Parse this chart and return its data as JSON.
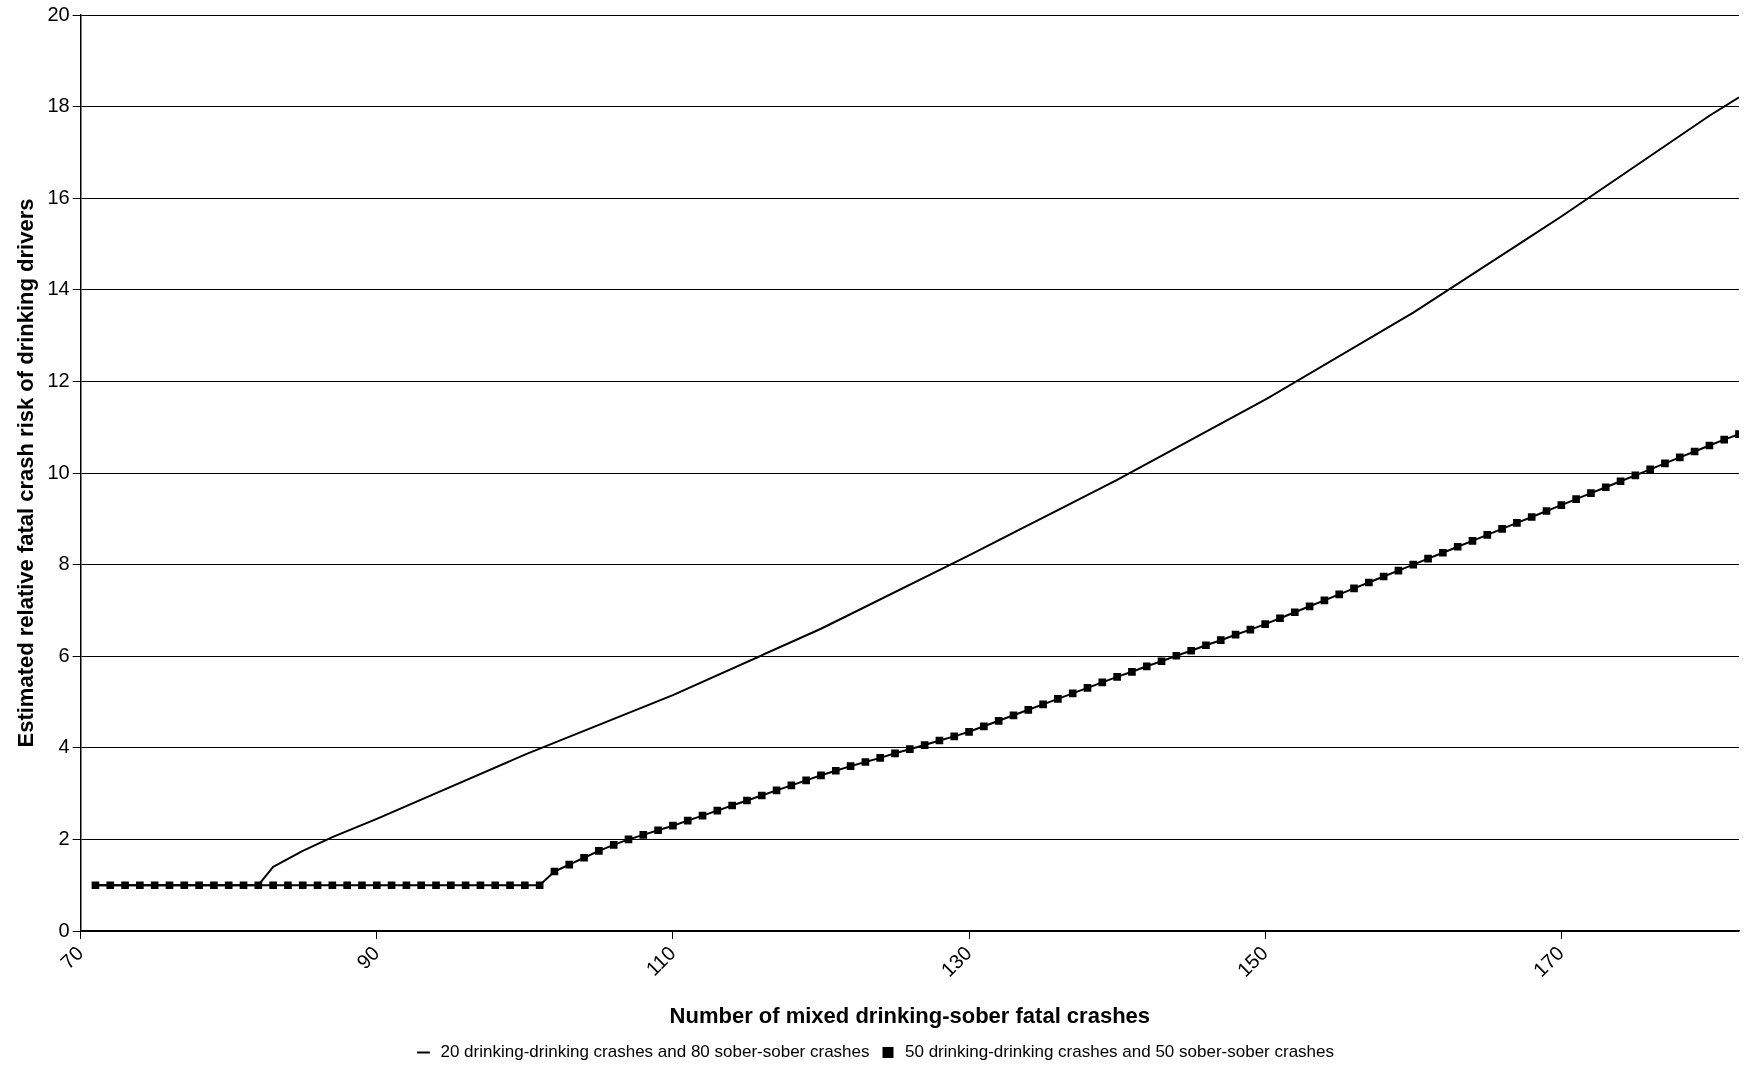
{
  "chart_data": {
    "type": "line",
    "xlabel": "Number of mixed drinking-sober fatal crashes",
    "ylabel": "Estimated relative fatal crash risk of drinking drivers",
    "xlim": [
      70,
      182
    ],
    "xticks": [
      70,
      90,
      110,
      130,
      150,
      170
    ],
    "ylim": [
      0,
      20
    ],
    "yticks": [
      0,
      2,
      4,
      6,
      8,
      10,
      12,
      14,
      16,
      18,
      20
    ],
    "grid": "y",
    "legend": "bottom",
    "line_style": "solid",
    "series": [
      {
        "name": "20 drinking-drinking crashes and 80 sober-sober crashes",
        "color": "#000000",
        "marker": "none",
        "x": [
          71,
          82,
          83,
          85,
          87,
          90,
          100,
          110,
          120,
          130,
          140,
          150,
          160,
          170,
          180,
          182
        ],
        "values": [
          1,
          1,
          1.4,
          1.75,
          2.05,
          2.45,
          3.85,
          5.15,
          6.6,
          8.2,
          9.85,
          11.6,
          13.5,
          15.6,
          17.8,
          18.2
        ]
      },
      {
        "name": "50 drinking-drinking crashes and 50 sober-sober crashes",
        "color": "#000000",
        "marker": "square",
        "x": [
          71,
          72,
          73,
          74,
          75,
          76,
          77,
          78,
          79,
          80,
          81,
          82,
          83,
          84,
          85,
          86,
          87,
          88,
          89,
          90,
          91,
          92,
          93,
          94,
          95,
          96,
          97,
          98,
          99,
          100,
          101,
          102,
          103,
          104,
          105,
          106,
          107,
          108,
          109,
          110,
          111,
          112,
          113,
          114,
          115,
          116,
          117,
          118,
          119,
          120,
          121,
          122,
          123,
          124,
          125,
          126,
          127,
          128,
          129,
          130,
          131,
          132,
          133,
          134,
          135,
          136,
          137,
          138,
          139,
          140,
          141,
          142,
          143,
          144,
          145,
          146,
          147,
          148,
          149,
          150,
          151,
          152,
          153,
          154,
          155,
          156,
          157,
          158,
          159,
          160,
          161,
          162,
          163,
          164,
          165,
          166,
          167,
          168,
          169,
          170,
          171,
          172,
          173,
          174,
          175,
          176,
          177,
          178,
          179,
          180,
          181,
          182
        ],
        "values": [
          1,
          1,
          1,
          1,
          1,
          1,
          1,
          1,
          1,
          1,
          1,
          1,
          1,
          1,
          1,
          1,
          1,
          1,
          1,
          1,
          1,
          1,
          1,
          1,
          1,
          1,
          1,
          1,
          1,
          1,
          1,
          1.3,
          1.45,
          1.6,
          1.75,
          1.88,
          2.0,
          2.1,
          2.2,
          2.3,
          2.41,
          2.52,
          2.63,
          2.74,
          2.85,
          2.96,
          3.07,
          3.18,
          3.29,
          3.4,
          3.5,
          3.6,
          3.69,
          3.78,
          3.88,
          3.97,
          4.06,
          4.16,
          4.25,
          4.35,
          4.47,
          4.59,
          4.71,
          4.83,
          4.95,
          5.07,
          5.19,
          5.31,
          5.43,
          5.55,
          5.66,
          5.78,
          5.89,
          6.01,
          6.12,
          6.24,
          6.35,
          6.47,
          6.58,
          6.7,
          6.83,
          6.96,
          7.09,
          7.22,
          7.35,
          7.48,
          7.61,
          7.74,
          7.87,
          8.0,
          8.13,
          8.26,
          8.39,
          8.52,
          8.65,
          8.78,
          8.91,
          9.04,
          9.17,
          9.3,
          9.43,
          9.56,
          9.69,
          9.82,
          9.95,
          10.08,
          10.21,
          10.34,
          10.47,
          10.6,
          10.73,
          10.85
        ]
      }
    ]
  }
}
